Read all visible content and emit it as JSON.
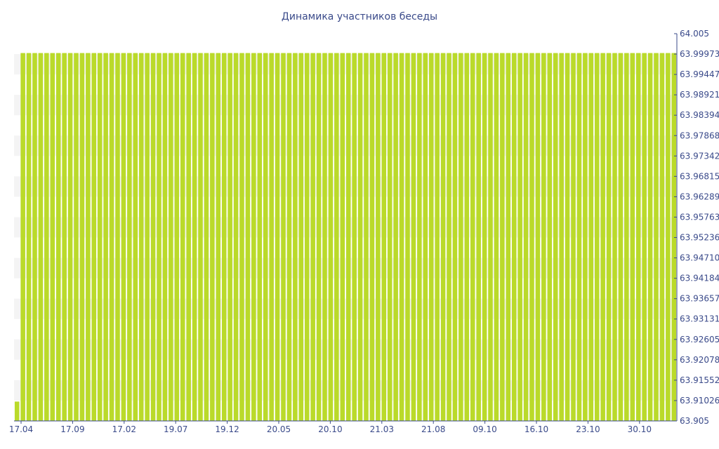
{
  "chart_data": {
    "type": "bar",
    "title": "Динамика участников беседы",
    "xlabel": "",
    "ylabel": "",
    "ylim": [
      63.905,
      64.005
    ],
    "y_axis_position": "right",
    "grid": "alternating-bands",
    "legend": "none",
    "bar_color": "#bada2a",
    "x_tick_labels": [
      "17.04",
      "17.09",
      "17.02",
      "19.07",
      "19.12",
      "20.05",
      "20.10",
      "21.03",
      "21.08",
      "09.10",
      "16.10",
      "23.10",
      "30.10"
    ],
    "y_tick_labels": [
      "64.005",
      "63.99973",
      "63.99447",
      "63.98921",
      "63.98394",
      "63.97868",
      "63.97342",
      "63.96815",
      "63.96289",
      "63.95763",
      "63.95236",
      "63.94710",
      "63.94184",
      "63.93657",
      "63.93131",
      "63.92605",
      "63.92078",
      "63.91552",
      "63.91026",
      "63.905"
    ],
    "first_value": 63.91,
    "value": 64,
    "bar_count": 112
  }
}
